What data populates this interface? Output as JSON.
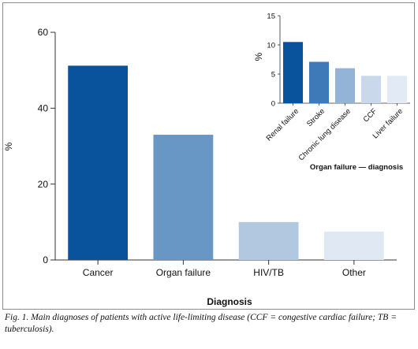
{
  "chart_data": [
    {
      "type": "bar",
      "categories": [
        "Cancer",
        "Organ failure",
        "HIV/TB",
        "Other"
      ],
      "values": [
        51.2,
        33.0,
        10.0,
        7.5
      ],
      "colors": [
        "#08539b",
        "#6896c5",
        "#b2c8e1",
        "#dfe8f3"
      ],
      "xlabel": "Diagnosis",
      "ylabel": "%",
      "ylim": [
        0,
        60
      ],
      "yticks": [
        0,
        20,
        40,
        60
      ],
      "grid": false
    },
    {
      "type": "bar",
      "categories": [
        "Renal failure",
        "Stroke",
        "Chronic lung disease",
        "CCF",
        "Liver failure"
      ],
      "values": [
        10.5,
        7.1,
        6.0,
        4.7,
        4.7
      ],
      "colors": [
        "#08539b",
        "#3f7ab8",
        "#94b4d7",
        "#c9d9eb",
        "#e2ebf5"
      ],
      "xlabel": "Organ failure — diagnosis",
      "ylabel": "%",
      "ylim": [
        0,
        15
      ],
      "yticks": [
        0,
        5,
        10,
        15
      ],
      "grid": false,
      "inset_position": "top-right"
    }
  ],
  "caption": "Fig. 1. Main diagnoses of patients with active life-limiting disease (CCF = congestive cardiac failure; TB = tuberculosis)."
}
